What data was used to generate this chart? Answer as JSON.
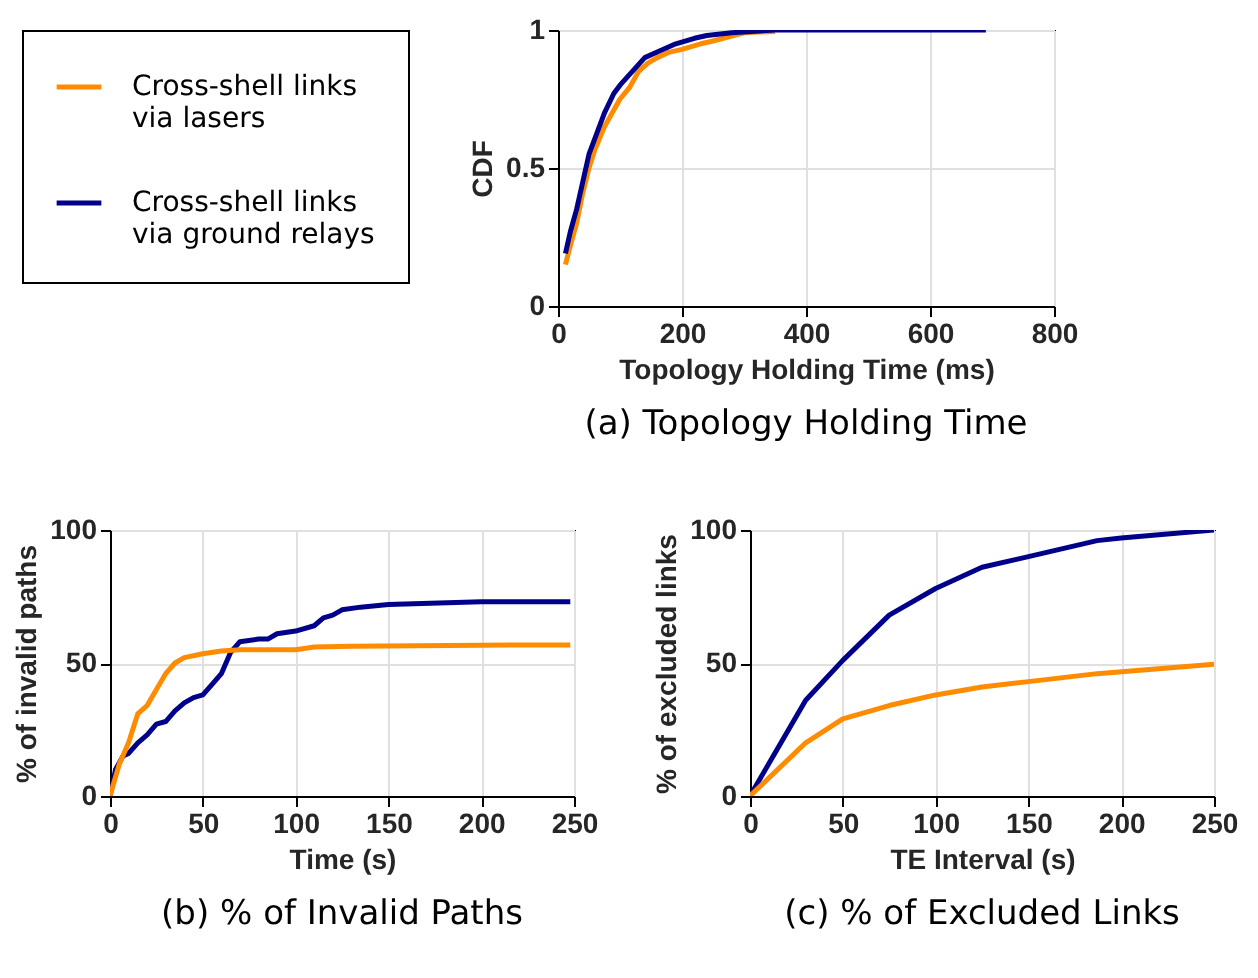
{
  "chart_data": [
    {
      "type": "line",
      "title": "(a) Topology Holding Time",
      "xlabel": "Topology Holding Time (ms)",
      "ylabel": "CDF",
      "xlim": [
        0,
        800
      ],
      "xticks": [
        0,
        200,
        400,
        600,
        800
      ],
      "ylim": [
        0,
        1
      ],
      "yticks": [
        0,
        0.5,
        1
      ],
      "grid": true,
      "legend": "left",
      "series": [
        {
          "name": "Cross-shell links via lasers",
          "color": "#ff8c00",
          "x": [
            12,
            20,
            30,
            40,
            50,
            60,
            75,
            90,
            100,
            115,
            130,
            145,
            160,
            180,
            200,
            230,
            250,
            300,
            350
          ],
          "values": [
            0.15,
            0.22,
            0.3,
            0.41,
            0.5,
            0.57,
            0.65,
            0.71,
            0.75,
            0.79,
            0.85,
            0.88,
            0.9,
            0.92,
            0.93,
            0.95,
            0.96,
            0.99,
            0.995
          ]
        },
        {
          "name": "Cross-shell links via ground relays",
          "color": "#00008b",
          "x": [
            12,
            20,
            30,
            40,
            50,
            60,
            75,
            90,
            100,
            120,
            140,
            160,
            190,
            220,
            240,
            280,
            350,
            450,
            550,
            690
          ],
          "values": [
            0.19,
            0.27,
            0.35,
            0.45,
            0.55,
            0.61,
            0.7,
            0.77,
            0.8,
            0.85,
            0.9,
            0.92,
            0.95,
            0.97,
            0.98,
            0.99,
            1,
            1,
            1,
            1
          ]
        }
      ]
    },
    {
      "type": "line",
      "title": "(b) % of Invalid Paths",
      "xlabel": "Time (s)",
      "ylabel": "% of invalid paths",
      "xlim": [
        0,
        250
      ],
      "xticks": [
        0,
        50,
        100,
        150,
        200,
        250
      ],
      "ylim": [
        0,
        100
      ],
      "yticks": [
        0,
        50,
        100
      ],
      "grid": true,
      "series": [
        {
          "color": "#00008b",
          "x": [
            0,
            3,
            7,
            10,
            15,
            20,
            25,
            30,
            35,
            40,
            45,
            50,
            55,
            60,
            65,
            70,
            80,
            85,
            90,
            100,
            110,
            115,
            120,
            125,
            135,
            150,
            200,
            248
          ],
          "values": [
            0,
            10,
            15,
            16,
            20,
            23,
            27,
            28,
            32,
            35,
            37,
            38,
            42,
            46,
            54,
            58,
            59,
            59,
            61,
            62,
            64,
            67,
            68,
            70,
            71,
            72,
            73,
            73
          ]
        },
        {
          "color": "#ff8c00",
          "x": [
            0,
            5,
            10,
            15,
            20,
            25,
            30,
            35,
            40,
            50,
            60,
            70,
            100,
            110,
            130,
            200,
            248
          ],
          "values": [
            0,
            12,
            20,
            31,
            34,
            40,
            46,
            50,
            52,
            53.5,
            54.5,
            55,
            55,
            56,
            56.3,
            56.7,
            56.8
          ]
        }
      ]
    },
    {
      "type": "line",
      "title": "(c) % of Excluded Links",
      "xlabel": "TE Interval (s)",
      "ylabel": "% of excluded links",
      "xlim": [
        0,
        250
      ],
      "xticks": [
        0,
        50,
        100,
        150,
        200,
        250
      ],
      "ylim": [
        0,
        100
      ],
      "yticks": [
        0,
        50,
        100
      ],
      "grid": true,
      "series": [
        {
          "color": "#00008b",
          "x": [
            0,
            30,
            50,
            75,
            100,
            125,
            150,
            187,
            200,
            250
          ],
          "values": [
            0,
            36,
            51,
            68,
            78,
            86,
            90,
            96,
            97,
            100
          ]
        },
        {
          "color": "#ff8c00",
          "x": [
            0,
            30,
            50,
            75,
            100,
            125,
            150,
            187,
            250
          ],
          "values": [
            0,
            20,
            29,
            34,
            38,
            41,
            43,
            46,
            49.5
          ]
        }
      ]
    }
  ]
}
